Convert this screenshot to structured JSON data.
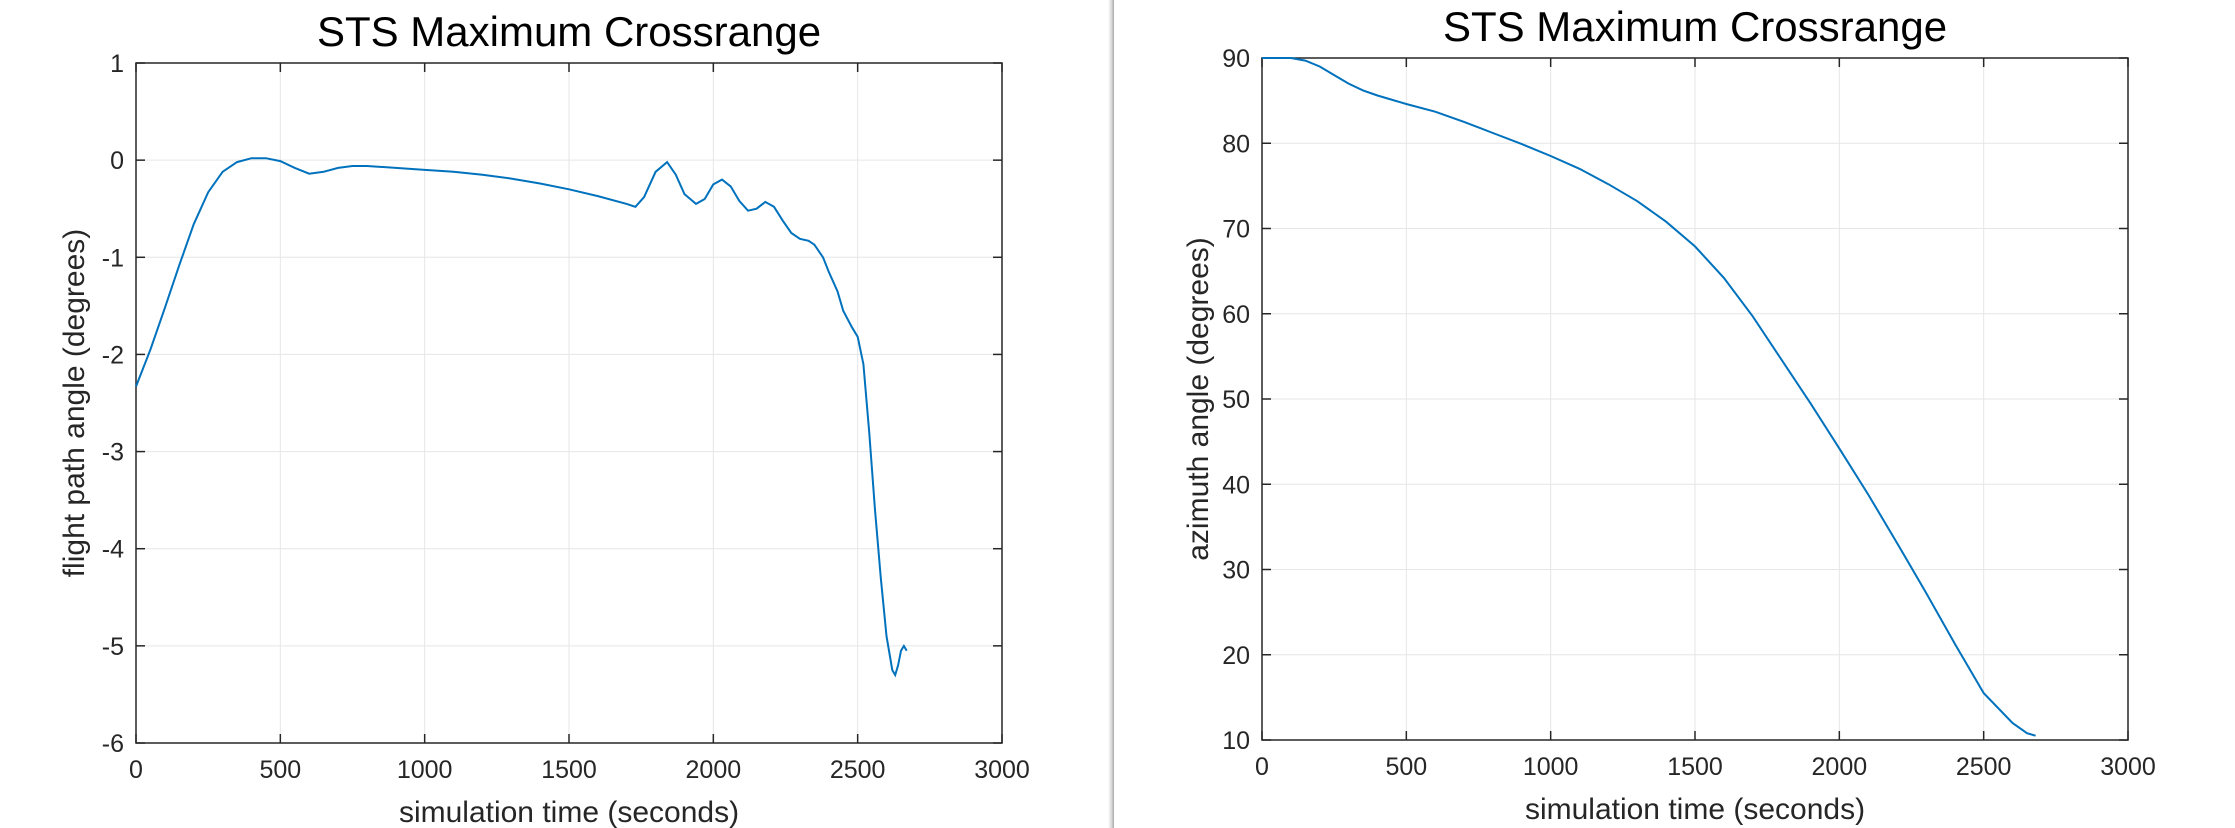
{
  "chart_data": [
    {
      "type": "line",
      "title": "STS Maximum Crossrange",
      "xlabel": "simulation time (seconds)",
      "ylabel": "flight path angle (degrees)",
      "xlim": [
        0,
        3000
      ],
      "ylim": [
        -6,
        1
      ],
      "xticks": [
        0,
        500,
        1000,
        1500,
        2000,
        2500,
        3000
      ],
      "yticks": [
        -6,
        -5,
        -4,
        -3,
        -2,
        -1,
        0,
        1
      ],
      "grid": true,
      "series_color": "#0072bd",
      "x": [
        0,
        50,
        100,
        150,
        200,
        250,
        300,
        350,
        400,
        450,
        500,
        550,
        600,
        650,
        700,
        750,
        800,
        900,
        1000,
        1100,
        1200,
        1300,
        1400,
        1500,
        1600,
        1700,
        1730,
        1760,
        1800,
        1840,
        1870,
        1900,
        1940,
        1970,
        2000,
        2030,
        2060,
        2090,
        2120,
        2150,
        2180,
        2210,
        2240,
        2270,
        2300,
        2330,
        2350,
        2380,
        2400,
        2430,
        2450,
        2480,
        2500,
        2520,
        2540,
        2560,
        2580,
        2600,
        2620,
        2630,
        2640,
        2650,
        2660,
        2670
      ],
      "values": [
        -2.33,
        -1.95,
        -1.52,
        -1.08,
        -0.66,
        -0.33,
        -0.12,
        -0.02,
        0.02,
        0.02,
        -0.01,
        -0.08,
        -0.14,
        -0.12,
        -0.08,
        -0.06,
        -0.06,
        -0.08,
        -0.1,
        -0.12,
        -0.15,
        -0.19,
        -0.24,
        -0.3,
        -0.37,
        -0.45,
        -0.48,
        -0.38,
        -0.12,
        -0.02,
        -0.15,
        -0.35,
        -0.45,
        -0.4,
        -0.25,
        -0.2,
        -0.27,
        -0.42,
        -0.52,
        -0.5,
        -0.43,
        -0.48,
        -0.62,
        -0.75,
        -0.81,
        -0.83,
        -0.87,
        -1.0,
        -1.15,
        -1.35,
        -1.55,
        -1.72,
        -1.82,
        -2.1,
        -2.8,
        -3.6,
        -4.3,
        -4.9,
        -5.25,
        -5.3,
        -5.2,
        -5.05,
        -5.0,
        -5.05
      ]
    },
    {
      "type": "line",
      "title": "STS Maximum Crossrange",
      "xlabel": "simulation time (seconds)",
      "ylabel": "azimuth angle (degrees)",
      "xlim": [
        0,
        3000
      ],
      "ylim": [
        10,
        90
      ],
      "xticks": [
        0,
        500,
        1000,
        1500,
        2000,
        2500,
        3000
      ],
      "yticks": [
        10,
        20,
        30,
        40,
        50,
        60,
        70,
        80,
        90
      ],
      "grid": true,
      "series_color": "#0072bd",
      "x": [
        0,
        50,
        100,
        150,
        200,
        250,
        300,
        350,
        400,
        500,
        600,
        700,
        800,
        900,
        1000,
        1100,
        1200,
        1300,
        1400,
        1500,
        1600,
        1700,
        1800,
        1900,
        2000,
        2100,
        2200,
        2300,
        2400,
        2500,
        2600,
        2650,
        2680
      ],
      "values": [
        90,
        90,
        90,
        89.7,
        89,
        88,
        87,
        86.2,
        85.6,
        84.6,
        83.7,
        82.5,
        81.2,
        79.9,
        78.5,
        77,
        75.2,
        73.2,
        70.8,
        67.9,
        64.2,
        59.7,
        54.6,
        49.5,
        44.2,
        38.8,
        33.1,
        27.3,
        21.3,
        15.5,
        12,
        10.8,
        10.5
      ]
    }
  ]
}
